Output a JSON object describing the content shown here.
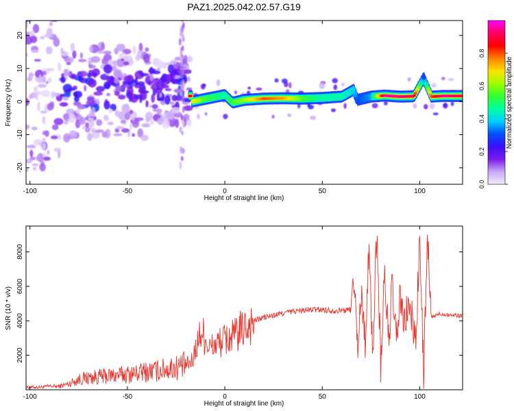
{
  "title": "PAZ1.2025.042.02.57.G19",
  "chart_data": [
    {
      "type": "heatmap",
      "xlabel": "Height of straight line (km)",
      "ylabel": "Frequency (Hz)",
      "xlim": [
        -102,
        122
      ],
      "ylim": [
        -25,
        24.5
      ],
      "xticks": [
        "-100",
        "-50",
        "0",
        "50",
        "100"
      ],
      "yticks": [
        "-20",
        "-10",
        "0",
        "10",
        "20"
      ],
      "colorbar_label": "Normalized spectral amplitude",
      "colorbar_ticks": [
        "0.0",
        "0.2",
        "0.4",
        "0.6",
        "0.8"
      ],
      "colorscale": [
        "#f4eaff",
        "#c8a8f8",
        "#7b1ae8",
        "#3a10ff",
        "#0050ff",
        "#00d0ff",
        "#00ffa0",
        "#30ff30",
        "#a0ff00",
        "#ffe000",
        "#ff8000",
        "#ff0000",
        "#ff0060",
        "#ff00ff"
      ],
      "ridge": [
        {
          "x": -17,
          "f": 0.0,
          "a": 0.7
        },
        {
          "x": -10,
          "f": 0.8,
          "a": 0.55
        },
        {
          "x": -4,
          "f": 1.5,
          "a": 0.5
        },
        {
          "x": 0,
          "f": 2.0,
          "a": 0.45
        },
        {
          "x": 4,
          "f": -0.3,
          "a": 0.55
        },
        {
          "x": 10,
          "f": 0.5,
          "a": 0.6
        },
        {
          "x": 20,
          "f": 0.9,
          "a": 0.8
        },
        {
          "x": 30,
          "f": 1.0,
          "a": 0.75
        },
        {
          "x": 40,
          "f": 0.9,
          "a": 0.55
        },
        {
          "x": 50,
          "f": 1.1,
          "a": 0.45
        },
        {
          "x": 60,
          "f": 1.5,
          "a": 0.45
        },
        {
          "x": 66,
          "f": 3.5,
          "a": 0.4
        },
        {
          "x": 68,
          "f": 0.5,
          "a": 0.3
        },
        {
          "x": 75,
          "f": 1.5,
          "a": 0.35
        },
        {
          "x": 82,
          "f": 1.8,
          "a": 0.95
        },
        {
          "x": 90,
          "f": 1.5,
          "a": 0.95
        },
        {
          "x": 97,
          "f": 1.6,
          "a": 0.9
        },
        {
          "x": 102,
          "f": 7.0,
          "a": 0.3
        },
        {
          "x": 106,
          "f": 1.5,
          "a": 0.8
        },
        {
          "x": 112,
          "f": 1.7,
          "a": 0.95
        },
        {
          "x": 122,
          "f": 1.7,
          "a": 0.9
        }
      ]
    },
    {
      "type": "line",
      "xlabel": "Height of straight line (km)",
      "ylabel": "SNR (10 * v/v)",
      "xlim": [
        -102,
        122
      ],
      "ylim": [
        0,
        9500
      ],
      "xticks": [
        "-100",
        "-50",
        "0",
        "50",
        "100"
      ],
      "yticks": [
        "2000",
        "4000",
        "6000",
        "8000"
      ],
      "series": [
        {
          "color": "#e8322a",
          "x": [
            -102,
            -95,
            -90,
            -85,
            -80,
            -75,
            -70,
            -65,
            -60,
            -55,
            -50,
            -45,
            -40,
            -35,
            -30,
            -25,
            -20,
            -17,
            -15,
            -12,
            -10,
            -8,
            -5,
            0,
            5,
            10,
            15,
            20,
            25,
            30,
            35,
            40,
            45,
            50,
            55,
            60,
            65,
            66,
            68,
            70,
            72,
            74,
            76,
            78,
            80,
            82,
            84,
            86,
            88,
            90,
            92,
            94,
            96,
            98,
            100,
            102,
            104,
            106,
            110,
            115,
            122
          ],
          "y": [
            150,
            150,
            200,
            200,
            350,
            600,
            700,
            750,
            800,
            850,
            900,
            950,
            1050,
            1100,
            1200,
            1300,
            1400,
            1600,
            2400,
            3400,
            3000,
            2400,
            2600,
            2900,
            3100,
            3600,
            4000,
            4200,
            4300,
            4450,
            4550,
            4600,
            4650,
            4650,
            4600,
            4600,
            4650,
            7000,
            2500,
            5500,
            3000,
            8000,
            2000,
            9500,
            1500,
            6500,
            3000,
            6000,
            2500,
            5500,
            3500,
            5000,
            4000,
            3000,
            8500,
            1000,
            8500,
            4200,
            4400,
            4350,
            4300
          ]
        }
      ]
    }
  ]
}
